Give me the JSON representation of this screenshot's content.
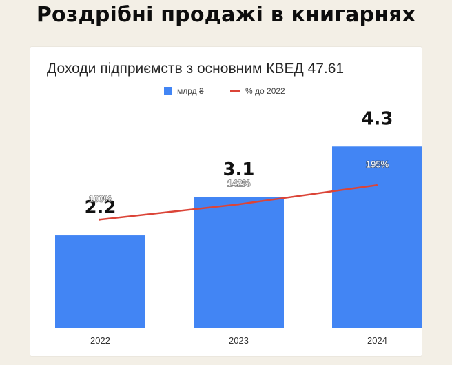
{
  "page": {
    "headline": "Роздрібні продажі в книгарнях"
  },
  "chart_data": {
    "type": "bar",
    "title": "Доходи підприємств з основним КВЕД 47.61",
    "xlabel": "",
    "ylabel": "",
    "categories": [
      "2022",
      "2023",
      "2024"
    ],
    "series": [
      {
        "name": "млрд ₴",
        "type": "bar",
        "color": "#4285f4",
        "values": [
          2.2,
          3.1,
          4.3
        ],
        "value_labels": [
          "2.2",
          "3.1",
          "4.3"
        ]
      },
      {
        "name": "% до 2022",
        "type": "line",
        "color": "#db4437",
        "values": [
          100,
          142,
          195
        ],
        "value_labels": [
          "100%",
          "142%",
          "195%"
        ]
      }
    ],
    "ylim": [
      0,
      6
    ],
    "secondary_ylim": [
      -200,
      500
    ],
    "legend": "top-center",
    "grid": false
  }
}
